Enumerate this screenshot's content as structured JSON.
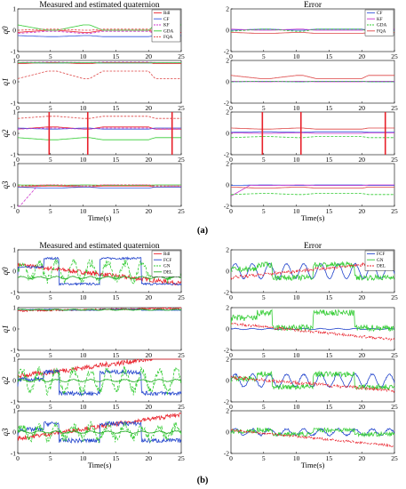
{
  "figure": {
    "caption_a": "(a)",
    "caption_b": "(b)"
  },
  "chart_data": [
    {
      "type": "line",
      "title": "Measured and estimated quaternion",
      "xlabel": "Time(s)",
      "legend": [
        "Rdl",
        "CF",
        "KF",
        "GDA",
        "FQA"
      ],
      "legend_position": "top-right",
      "series_colors": [
        "#e8202a",
        "#3355dd",
        "#cc33cc",
        "#33cc33",
        "#dd4444"
      ],
      "x_ticks": [
        0,
        5,
        10,
        15,
        20,
        25
      ],
      "subplots": [
        {
          "ylabel": "q0",
          "ylim": [
            -1,
            1
          ],
          "yticks": [
            -1,
            0,
            1
          ],
          "mode": "quat",
          "hasLegend": true,
          "series": [
            {
              "name": "Rdl",
              "base": -0.1,
              "amp": 0.1,
              "noise": 0
            },
            {
              "name": "CF",
              "base": -0.25,
              "amp": 0.05,
              "noise": 0
            },
            {
              "name": "KF",
              "base": -0.15,
              "amp": 0.1,
              "noise": 0
            },
            {
              "name": "GDA",
              "base": 0.25,
              "amp": 0.25,
              "noise": 0
            },
            {
              "name": "FQA",
              "base": 0.0,
              "amp": 0.05,
              "noise": 0
            }
          ]
        },
        {
          "ylabel": "q1",
          "ylim": [
            -1,
            1
          ],
          "yticks": [
            -1,
            0,
            1
          ],
          "mode": "quat",
          "series": [
            {
              "name": "Rdl",
              "base": 0.85,
              "amp": 0.05,
              "noise": 0
            },
            {
              "name": "CF",
              "base": 0.9,
              "amp": 0.02,
              "noise": 0
            },
            {
              "name": "KF",
              "base": 0.9,
              "amp": 0.02,
              "noise": 0
            },
            {
              "name": "GDA",
              "base": 0.9,
              "amp": 0.02,
              "noise": 0
            },
            {
              "name": "FQA",
              "base": 0.15,
              "amp": 0.35,
              "noise": 0
            }
          ]
        },
        {
          "ylabel": "q2",
          "ylim": [
            -1,
            1
          ],
          "yticks": [
            -1,
            0,
            1
          ],
          "mode": "quat",
          "spikes": [
            4.8,
            10.7,
            23.6
          ],
          "series": [
            {
              "name": "Rdl",
              "base": 0.2,
              "amp": 0.1,
              "noise": 0
            },
            {
              "name": "CF",
              "base": 0.25,
              "amp": 0.05,
              "noise": 0
            },
            {
              "name": "KF",
              "base": 0.2,
              "amp": 0.05,
              "noise": 0
            },
            {
              "name": "GDA",
              "base": -0.2,
              "amp": 0.1,
              "noise": 0
            },
            {
              "name": "FQA",
              "base": 0.7,
              "amp": 0.1,
              "noise": 0
            }
          ]
        },
        {
          "ylabel": "q3",
          "ylim": [
            -1,
            1
          ],
          "yticks": [
            -1,
            0,
            1
          ],
          "mode": "quat",
          "initialDip": true,
          "series": [
            {
              "name": "Rdl",
              "base": -0.1,
              "amp": 0.05,
              "noise": 0
            },
            {
              "name": "CF",
              "base": -0.1,
              "amp": 0.05,
              "noise": 0
            },
            {
              "name": "KF",
              "base": -0.05,
              "amp": 0.05,
              "noise": 0
            },
            {
              "name": "GDA",
              "base": 0.0,
              "amp": 0.02,
              "noise": 0
            },
            {
              "name": "FQA",
              "base": -0.05,
              "amp": 0.05,
              "noise": 0
            }
          ]
        }
      ]
    },
    {
      "type": "line",
      "title": "Error",
      "xlabel": "Time(s)",
      "legend": [
        "CF",
        "KF",
        "GDA",
        "FQA"
      ],
      "legend_position": "top-right",
      "series_colors": [
        "#3355dd",
        "#cc33cc",
        "#33cc33",
        "#dd4444"
      ],
      "x_ticks": [
        0,
        5,
        10,
        15,
        20,
        25
      ],
      "subplots": [
        {
          "ylabel": "",
          "ylim": [
            -2,
            2
          ],
          "yticks": [
            -2,
            0,
            2
          ],
          "mode": "quat",
          "hasLegend": true,
          "series": [
            {
              "name": "CF",
              "base": 0.0,
              "amp": 0.1,
              "noise": 0
            },
            {
              "name": "KF",
              "base": 0.1,
              "amp": 0.1,
              "noise": 0
            },
            {
              "name": "GDA",
              "base": -0.1,
              "amp": 0.2,
              "noise": 0
            },
            {
              "name": "FQA",
              "base": -0.2,
              "amp": 0.1,
              "noise": 0
            }
          ]
        },
        {
          "ylabel": "",
          "ylim": [
            -2,
            2
          ],
          "yticks": [
            -2,
            0,
            2
          ],
          "mode": "quat",
          "series": [
            {
              "name": "CF",
              "base": 0.0,
              "amp": 0.05,
              "noise": 0
            },
            {
              "name": "KF",
              "base": 0.05,
              "amp": 0.05,
              "noise": 0
            },
            {
              "name": "GDA",
              "base": 0.0,
              "amp": 0.05,
              "noise": 0
            },
            {
              "name": "FQA",
              "base": 0.6,
              "amp": 0.3,
              "noise": 0
            }
          ]
        },
        {
          "ylabel": "",
          "ylim": [
            -2,
            2
          ],
          "yticks": [
            -2,
            0,
            2
          ],
          "mode": "quat",
          "spikes": [
            4.8,
            10.7,
            23.6
          ],
          "series": [
            {
              "name": "CF",
              "base": 0.1,
              "amp": 0.05,
              "noise": 0
            },
            {
              "name": "KF",
              "base": 0.05,
              "amp": 0.05,
              "noise": 0
            },
            {
              "name": "GDA",
              "base": -0.4,
              "amp": 0.1,
              "noise": 0
            },
            {
              "name": "FQA",
              "base": 0.5,
              "amp": 0.1,
              "noise": 0
            }
          ]
        },
        {
          "ylabel": "",
          "ylim": [
            -2,
            2
          ],
          "yticks": [
            -2,
            0,
            2
          ],
          "mode": "quat",
          "initialDip": true,
          "series": [
            {
              "name": "CF",
              "base": -0.05,
              "amp": 0.05,
              "noise": 0
            },
            {
              "name": "KF",
              "base": 0.0,
              "amp": 0.05,
              "noise": 0
            },
            {
              "name": "GDA",
              "base": -0.9,
              "amp": 0.1,
              "noise": 0
            },
            {
              "name": "FQA",
              "base": -0.2,
              "amp": 0.1,
              "noise": 0
            }
          ]
        }
      ]
    },
    {
      "type": "line",
      "title": "Measured and estimated quaternion",
      "xlabel": "Time(s)",
      "legend": [
        "Rdl",
        "FCF",
        "GN",
        "DEL"
      ],
      "legend_position": "top-right",
      "series_colors": [
        "#e8202a",
        "#2244cc",
        "#33cc33",
        "#22aa22"
      ],
      "x_ticks": [
        0,
        5,
        10,
        15,
        20,
        25
      ],
      "subplots": [
        {
          "ylabel": "q0",
          "ylim": [
            -1,
            1
          ],
          "yticks": [
            -1,
            0,
            1
          ],
          "mode": "drift",
          "hasLegend": true,
          "series": [
            {
              "name": "Rdl",
              "base": 0.3,
              "slope": -0.035,
              "noise": 0.1
            },
            {
              "name": "FCF",
              "base": 0.0,
              "amp": 0.6,
              "noise": 0.05
            },
            {
              "name": "GN",
              "base": 0.0,
              "amp": 0.4,
              "noise": 0.2
            },
            {
              "name": "DEL",
              "base": -0.3,
              "amp": 0.05,
              "noise": 0.02
            }
          ]
        },
        {
          "ylabel": "q1",
          "ylim": [
            -1,
            1
          ],
          "yticks": [
            -1,
            0,
            1
          ],
          "mode": "drift",
          "series": [
            {
              "name": "Rdl",
              "base": 0.85,
              "slope": 0.005,
              "noise": 0.04
            },
            {
              "name": "FCF",
              "base": 0.9,
              "amp": 0.02,
              "noise": 0.01
            },
            {
              "name": "GN",
              "base": 0.9,
              "amp": 0.02,
              "noise": 0.01
            },
            {
              "name": "DEL",
              "base": 0.9,
              "amp": 0.02,
              "noise": 0.01
            }
          ]
        },
        {
          "ylabel": "q2",
          "ylim": [
            -1,
            1
          ],
          "yticks": [
            -1,
            0,
            1
          ],
          "mode": "drift",
          "series": [
            {
              "name": "Rdl",
              "base": 0.2,
              "slope": 0.04,
              "noise": 0.12
            },
            {
              "name": "FCF",
              "base": -0.1,
              "amp": 0.5,
              "noise": 0.1
            },
            {
              "name": "GN",
              "base": 0.0,
              "amp": 0.5,
              "noise": 0.2
            },
            {
              "name": "DEL",
              "base": 0.0,
              "amp": 0.05,
              "noise": 0.02
            }
          ]
        },
        {
          "ylabel": "q3",
          "ylim": [
            -1,
            1
          ],
          "yticks": [
            -1,
            0,
            1
          ],
          "mode": "drift",
          "series": [
            {
              "name": "Rdl",
              "base": -0.3,
              "slope": 0.045,
              "noise": 0.1
            },
            {
              "name": "FCF",
              "base": 0.0,
              "amp": 0.4,
              "noise": 0.1
            },
            {
              "name": "GN",
              "base": 0.0,
              "amp": 0.3,
              "noise": 0.2
            },
            {
              "name": "DEL",
              "base": 0.0,
              "amp": 0.05,
              "noise": 0.02
            }
          ]
        }
      ]
    },
    {
      "type": "line",
      "title": "Error",
      "xlabel": "Time(s)",
      "legend": [
        "FCF",
        "GN",
        "DEL"
      ],
      "legend_position": "top-right",
      "series_colors": [
        "#2244cc",
        "#33cc33",
        "#e8202a"
      ],
      "x_ticks": [
        0,
        5,
        10,
        15,
        20,
        25
      ],
      "subplots": [
        {
          "ylabel": "",
          "ylim": [
            -2,
            2
          ],
          "yticks": [
            -2,
            0,
            2
          ],
          "mode": "drift",
          "hasLegend": true,
          "series": [
            {
              "name": "FCF",
              "base": 0.0,
              "amp": 0.7,
              "noise": 0.05
            },
            {
              "name": "GN",
              "base": 0.0,
              "amp": 0.6,
              "noise": 0.25
            },
            {
              "name": "DEL",
              "base": -0.6,
              "slope": 0.06,
              "noise": 0.15
            }
          ]
        },
        {
          "ylabel": "",
          "ylim": [
            -2,
            2
          ],
          "yticks": [
            -2,
            0,
            2
          ],
          "mode": "drift",
          "series": [
            {
              "name": "FCF",
              "base": 0.0,
              "amp": 0.05,
              "noise": 0.02
            },
            {
              "name": "GN",
              "base": 0.8,
              "amp": 0.7,
              "noise": 0.3
            },
            {
              "name": "DEL",
              "base": 0.5,
              "slope": -0.06,
              "noise": 0.12
            }
          ]
        },
        {
          "ylabel": "",
          "ylim": [
            -2,
            2
          ],
          "yticks": [
            -2,
            0,
            2
          ],
          "mode": "drift",
          "series": [
            {
              "name": "FCF",
              "base": 0.0,
              "amp": 0.6,
              "noise": 0.08
            },
            {
              "name": "GN",
              "base": 0.0,
              "amp": 0.6,
              "noise": 0.25
            },
            {
              "name": "DEL",
              "base": 0.3,
              "slope": -0.05,
              "noise": 0.15
            }
          ]
        },
        {
          "ylabel": "",
          "ylim": [
            -2,
            2
          ],
          "yticks": [
            -2,
            0,
            2
          ],
          "mode": "drift",
          "series": [
            {
              "name": "FCF",
              "base": 0.0,
              "amp": 0.3,
              "noise": 0.08
            },
            {
              "name": "GN",
              "base": 0.0,
              "amp": 0.2,
              "noise": 0.2
            },
            {
              "name": "DEL",
              "base": 0.2,
              "slope": -0.06,
              "noise": 0.1
            }
          ]
        }
      ]
    }
  ]
}
